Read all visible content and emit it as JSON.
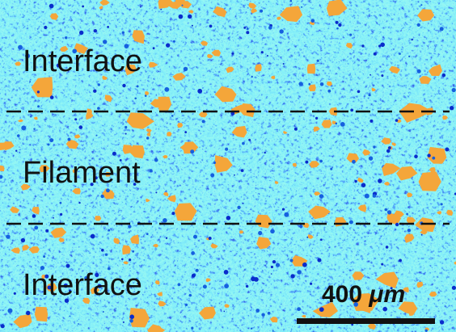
{
  "regions": [
    {
      "label": "Interface"
    },
    {
      "label": "Filament"
    },
    {
      "label": "Interface"
    }
  ],
  "scale_bar": {
    "number": "400",
    "unit": "μm"
  }
}
